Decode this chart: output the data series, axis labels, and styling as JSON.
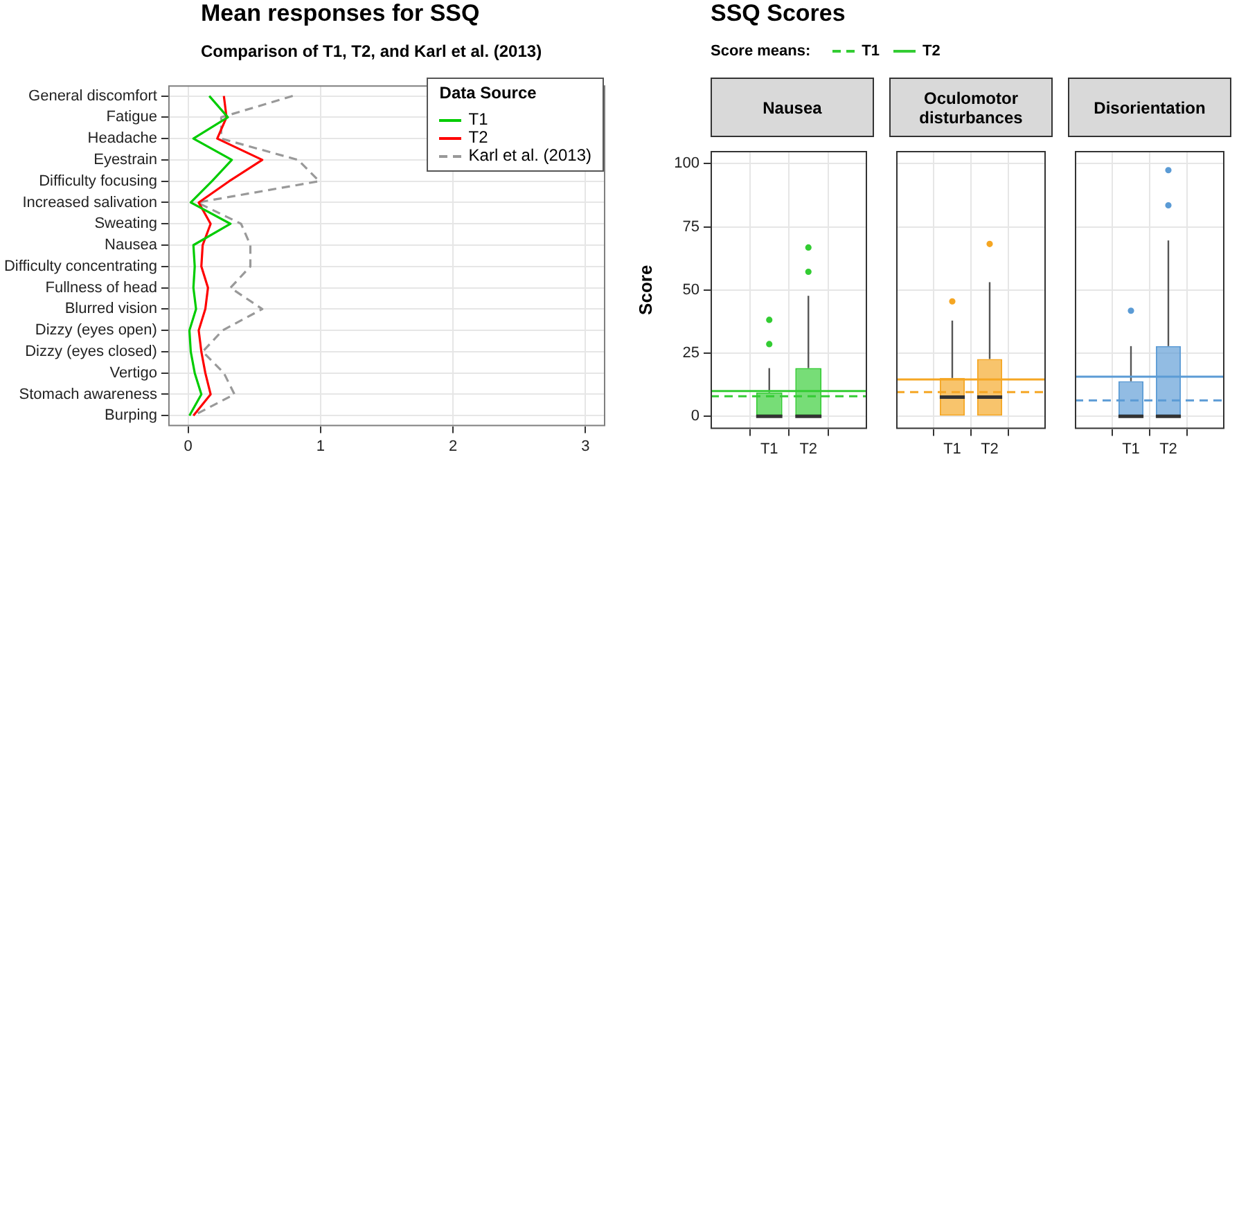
{
  "chart_data": [
    {
      "type": "line",
      "title": "Mean responses for SSQ",
      "subtitle": "Comparison of T1, T2, and Karl et al. (2013)",
      "legend_title": "Data Source",
      "legend": "top right",
      "orientation": "horizontal",
      "grid": true,
      "marker": "none",
      "xlim": [
        -0.15,
        3.15
      ],
      "xticks": [
        0,
        1,
        2,
        3
      ],
      "categories": [
        "General discomfort",
        "Fatigue",
        "Headache",
        "Eyestrain",
        "Difficulty focusing",
        "Increased salivation",
        "Sweating",
        "Nausea",
        "Difficulty concentrating",
        "Fullness of head",
        "Blurred vision",
        "Dizzy (eyes open)",
        "Dizzy (eyes closed)",
        "Vertigo",
        "Stomach awareness",
        "Burping"
      ],
      "series": [
        {
          "name": "T1",
          "color": "#00cc00",
          "values": [
            0.16,
            0.3,
            0.04,
            0.33,
            0.18,
            0.02,
            0.32,
            0.04,
            0.05,
            0.04,
            0.06,
            0.01,
            0.02,
            0.05,
            0.1,
            0.01
          ]
        },
        {
          "name": "T2",
          "color": "#ff0000",
          "values": [
            0.27,
            0.29,
            0.22,
            0.56,
            0.31,
            0.08,
            0.17,
            0.11,
            0.1,
            0.15,
            0.13,
            0.08,
            0.1,
            0.13,
            0.17,
            0.04
          ]
        },
        {
          "name": "Karl et al. (2013)",
          "color": "#999999",
          "line_style": "dashed",
          "values": [
            0.79,
            0.25,
            0.25,
            0.83,
            0.99,
            0.07,
            0.4,
            0.47,
            0.47,
            0.32,
            0.56,
            0.26,
            0.11,
            0.27,
            0.35,
            0.04
          ]
        }
      ]
    },
    {
      "type": "box",
      "title": "Nausea",
      "annotations": [
        "SSQ Scores"
      ],
      "legend_title": "Score means:",
      "legend": "top",
      "ylabel": "Score",
      "grid": true,
      "categories": [
        "T1",
        "T2"
      ],
      "ylim": [
        -5,
        105
      ],
      "yticks": [
        0,
        25,
        50,
        75,
        100
      ],
      "series": [
        {
          "color": "#33cc33",
          "boxes": [
            {
              "low": 0,
              "q1": 0,
              "median": 0,
              "q3": 9.5,
              "high": 19.1,
              "outliers": [
                28.6,
                38.2
              ]
            },
            {
              "low": 0,
              "q1": 0,
              "median": 0,
              "q3": 19.1,
              "high": 47.7,
              "outliers": [
                57.2,
                66.8
              ]
            }
          ]
        }
      ],
      "ref_lines": [
        {
          "axis": "y",
          "value": 8,
          "label": "T1",
          "color": "#33cc33",
          "line_style": "dashed"
        },
        {
          "axis": "y",
          "value": 10,
          "label": "T2",
          "color": "#33cc33",
          "line_style": "solid"
        }
      ]
    },
    {
      "type": "box",
      "title": "Oculomotor disturbances",
      "grid": true,
      "tick_labels": "x",
      "categories": [
        "T1",
        "T2"
      ],
      "ylim": [
        -5,
        105
      ],
      "yticks": [
        0,
        25,
        50,
        75,
        100
      ],
      "series": [
        {
          "color": "#f5a623",
          "boxes": [
            {
              "low": 0,
              "q1": 0,
              "median": 7.6,
              "q3": 15.2,
              "high": 37.9,
              "outliers": [
                45.5
              ]
            },
            {
              "low": 0,
              "q1": 0,
              "median": 7.6,
              "q3": 22.7,
              "high": 53.1,
              "outliers": [
                68.2
              ]
            }
          ]
        }
      ],
      "ref_lines": [
        {
          "axis": "y",
          "value": 9.6,
          "color": "#f5a623",
          "line_style": "dashed"
        },
        {
          "axis": "y",
          "value": 14.6,
          "color": "#f5a623",
          "line_style": "solid"
        }
      ]
    },
    {
      "type": "box",
      "title": "Disorientation",
      "grid": true,
      "tick_labels": "x",
      "categories": [
        "T1",
        "T2"
      ],
      "ylim": [
        -5,
        105
      ],
      "yticks": [
        0,
        25,
        50,
        75,
        100
      ],
      "series": [
        {
          "color": "#5b9bd5",
          "boxes": [
            {
              "low": 0,
              "q1": 0,
              "median": 0,
              "q3": 13.9,
              "high": 27.8,
              "outliers": [
                41.8
              ]
            },
            {
              "low": 0,
              "q1": 0,
              "median": 0,
              "q3": 27.8,
              "high": 69.6,
              "outliers": [
                83.5,
                97.4
              ]
            }
          ]
        }
      ],
      "ref_lines": [
        {
          "axis": "y",
          "value": 6.3,
          "color": "#5b9bd5",
          "line_style": "dashed"
        },
        {
          "axis": "y",
          "value": 15.7,
          "color": "#5b9bd5",
          "line_style": "solid"
        }
      ]
    }
  ]
}
